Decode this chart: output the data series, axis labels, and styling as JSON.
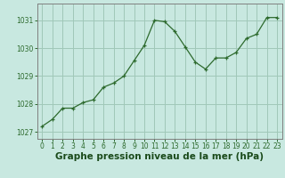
{
  "x": [
    0,
    1,
    2,
    3,
    4,
    5,
    6,
    7,
    8,
    9,
    10,
    11,
    12,
    13,
    14,
    15,
    16,
    17,
    18,
    19,
    20,
    21,
    22,
    23
  ],
  "y": [
    1027.2,
    1027.45,
    1027.85,
    1027.85,
    1028.05,
    1028.15,
    1028.6,
    1028.75,
    1029.0,
    1029.55,
    1030.1,
    1031.0,
    1030.95,
    1030.6,
    1030.05,
    1029.5,
    1029.25,
    1029.65,
    1029.65,
    1029.85,
    1030.35,
    1030.5,
    1031.1,
    1031.1
  ],
  "line_color": "#2d6a2d",
  "marker_color": "#2d6a2d",
  "bg_color": "#c8e8e0",
  "plot_bg_color": "#c8e8e0",
  "grid_color": "#a0c8b8",
  "border_color": "#808080",
  "xlabel": "Graphe pression niveau de la mer (hPa)",
  "xlabel_color": "#1a4a1a",
  "ylabel_ticks": [
    1027,
    1028,
    1029,
    1030,
    1031
  ],
  "xlim": [
    -0.5,
    23.5
  ],
  "ylim": [
    1026.75,
    1031.6
  ],
  "xtick_labels": [
    "0",
    "1",
    "2",
    "3",
    "4",
    "5",
    "6",
    "7",
    "8",
    "9",
    "10",
    "11",
    "12",
    "13",
    "14",
    "15",
    "16",
    "17",
    "18",
    "19",
    "20",
    "21",
    "22",
    "23"
  ],
  "tick_fontsize": 5.5,
  "xlabel_fontsize": 7.5
}
